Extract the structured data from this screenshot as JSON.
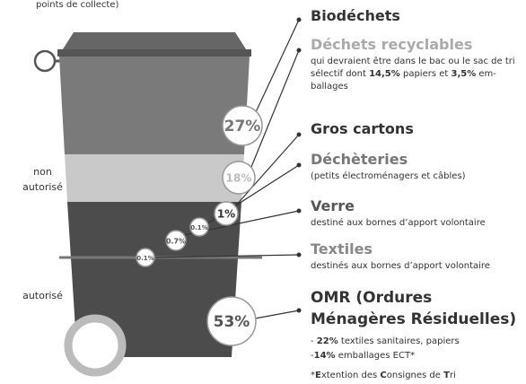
{
  "header_note": "points de collecte)",
  "side_labels": [
    "non autorisé",
    "autorisé"
  ],
  "bubbles": [
    "27%",
    "18%",
    "1%",
    "0.1%",
    "0.7%",
    "0.1%",
    "53%"
  ],
  "items": [
    {
      "title": "Biodéchets"
    },
    {
      "title": "Déchets recyclables",
      "description": [
        "qui devraient être dans le bac ou le sac de tri sélectif dont ",
        "14,5%",
        " papiers et ",
        "3,5%",
        " em-ballages"
      ]
    },
    {
      "title": "Gros cartons"
    },
    {
      "title": "Déchèteries",
      "description": [
        "(petits électroménagers et câbles)"
      ]
    },
    {
      "title": "Verre",
      "description": [
        "destiné aux bornes d’apport volontaire"
      ]
    },
    {
      "title": "Textiles",
      "description": [
        "destinés aux bornes d’apport volontaire"
      ]
    },
    {
      "title": "OMR (Ordures Ménagères Résiduelles)",
      "details": [
        [
          "- ",
          "22%",
          " textiles sanitaires, papiers"
        ],
        [
          "-",
          "14%",
          " emballages ECT*"
        ]
      ],
      "footnote": [
        "*",
        "E",
        "xtention des ",
        "C",
        "onsignes de ",
        "T",
        "ri"
      ]
    }
  ]
}
